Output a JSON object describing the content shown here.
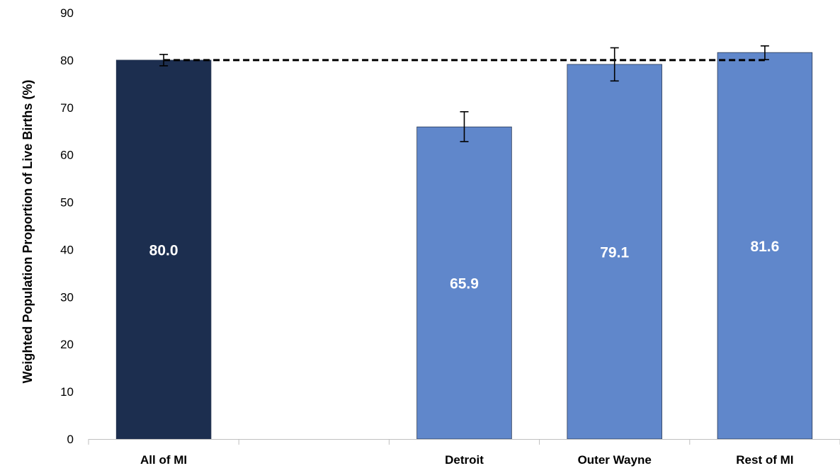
{
  "chart_data": {
    "type": "bar",
    "categories": [
      "All of MI",
      "",
      "Detroit",
      "Outer Wayne",
      "Rest of MI"
    ],
    "values": [
      80.0,
      null,
      65.9,
      79.1,
      81.6
    ],
    "data_labels": [
      "80.0",
      "",
      "65.9",
      "79.1",
      "81.6"
    ],
    "error_bars": [
      [
        78.8,
        81.2
      ],
      null,
      [
        62.8,
        69.1
      ],
      [
        75.6,
        82.6
      ],
      [
        80.1,
        83.0
      ]
    ],
    "bar_colors": [
      "#1c2e4f",
      null,
      "#6087cb",
      "#6087cb",
      "#6087cb"
    ],
    "reference_line": {
      "value": 80.0,
      "style": "dashed",
      "color": "#000000"
    },
    "ylabel": "Weighted Population Proportion of Live Births (%)",
    "xlabel": "",
    "ylim": [
      0,
      90
    ],
    "yticks": [
      "0",
      "10",
      "20",
      "30",
      "40",
      "50",
      "60",
      "70",
      "80",
      "90"
    ],
    "grid": false,
    "legend": "none"
  }
}
